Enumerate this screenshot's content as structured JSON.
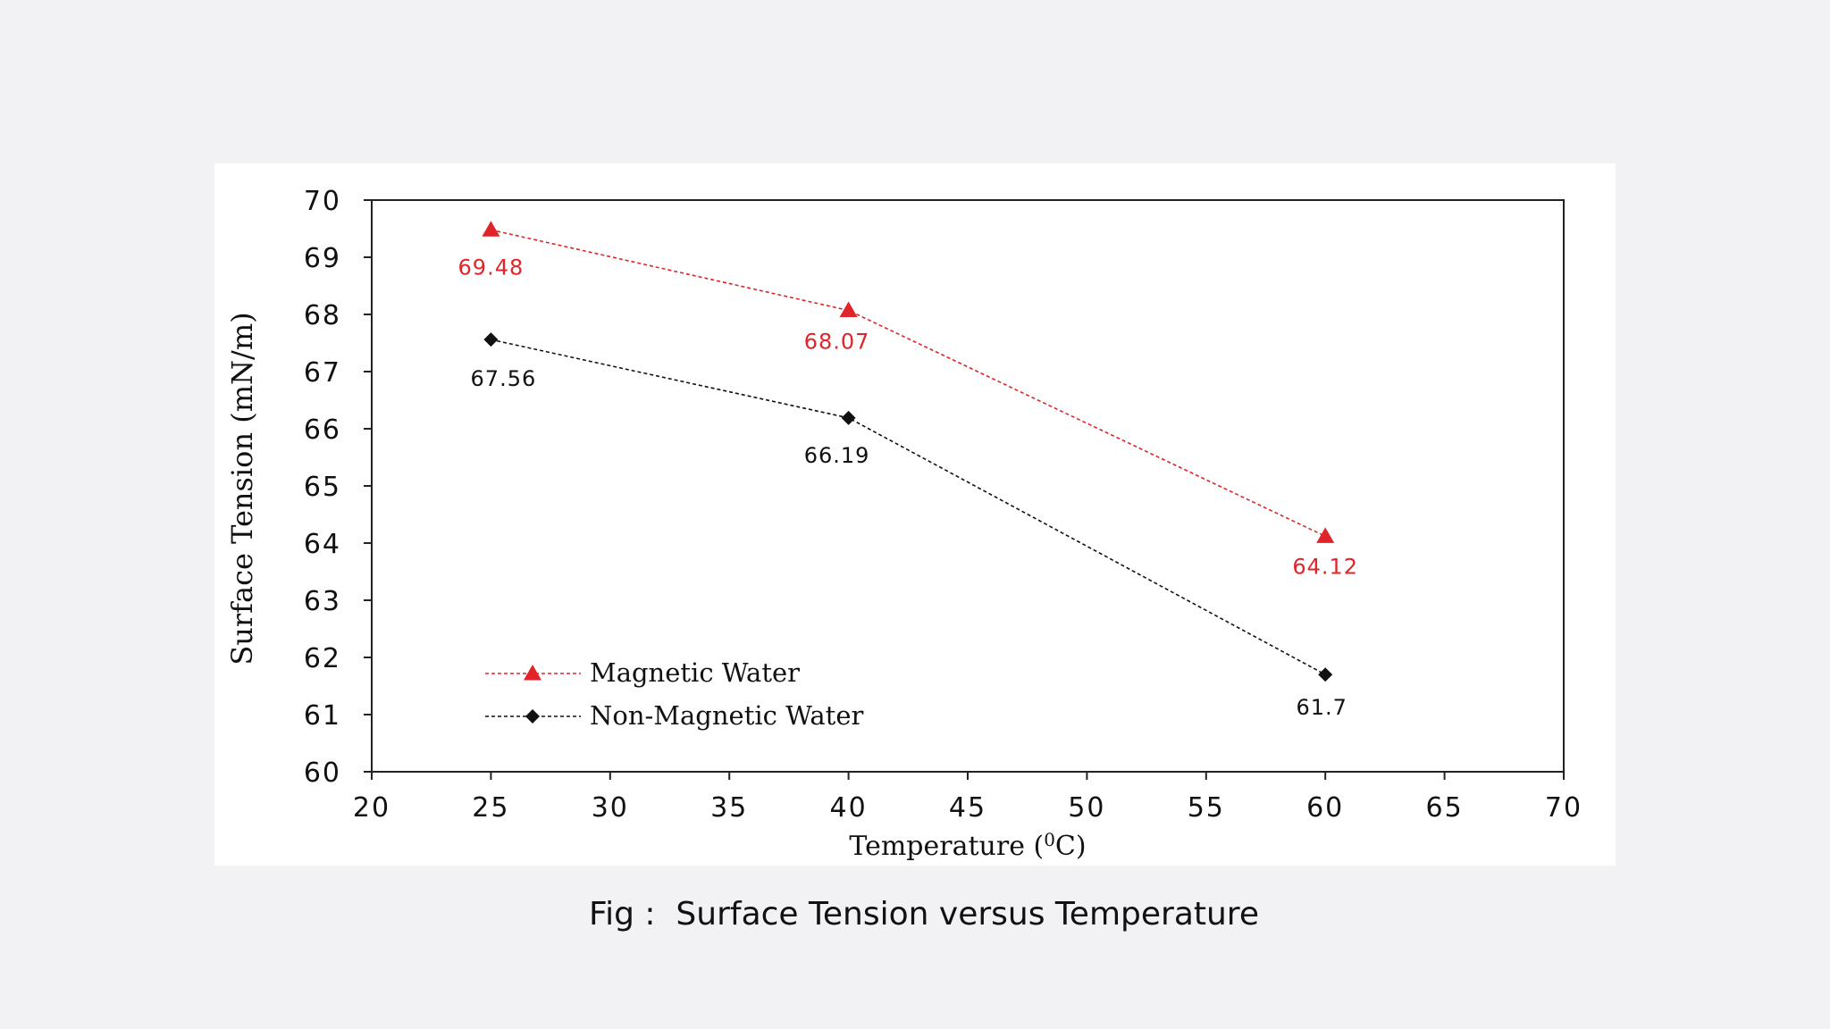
{
  "slide": {
    "caption": "Fig :  Surface Tension versus Temperature"
  },
  "chart_data": {
    "type": "line",
    "xlabel_main": "Temperature (",
    "xlabel_sup": "0",
    "xlabel_end": "C)",
    "ylabel": "Surface Tension (mN/m)",
    "xlim": [
      20,
      70
    ],
    "ylim": [
      60,
      70
    ],
    "x_ticks": [
      "20",
      "25",
      "30",
      "35",
      "40",
      "45",
      "50",
      "55",
      "60",
      "65",
      "70"
    ],
    "x_tick_values": [
      20,
      25,
      30,
      35,
      40,
      45,
      50,
      55,
      60,
      65,
      70
    ],
    "y_ticks": [
      "60",
      "61",
      "62",
      "63",
      "64",
      "65",
      "66",
      "67",
      "68",
      "69",
      "70"
    ],
    "y_tick_values": [
      60,
      61,
      62,
      63,
      64,
      65,
      66,
      67,
      68,
      69,
      70
    ],
    "grid": false,
    "legend_position": "bottom-left",
    "series": [
      {
        "name": "Magnetic Water",
        "marker": "triangle",
        "color": "#e0242a",
        "x": [
          25,
          40,
          60
        ],
        "y": [
          69.48,
          68.07,
          64.12
        ],
        "labels": [
          "69.48",
          "68.07",
          "64.12"
        ]
      },
      {
        "name": "Non-Magnetic Water",
        "marker": "diamond",
        "color": "#111111",
        "x": [
          25,
          40,
          60
        ],
        "y": [
          67.56,
          66.19,
          61.7
        ],
        "labels": [
          "67.56",
          "66.19",
          "61.7"
        ]
      }
    ]
  }
}
